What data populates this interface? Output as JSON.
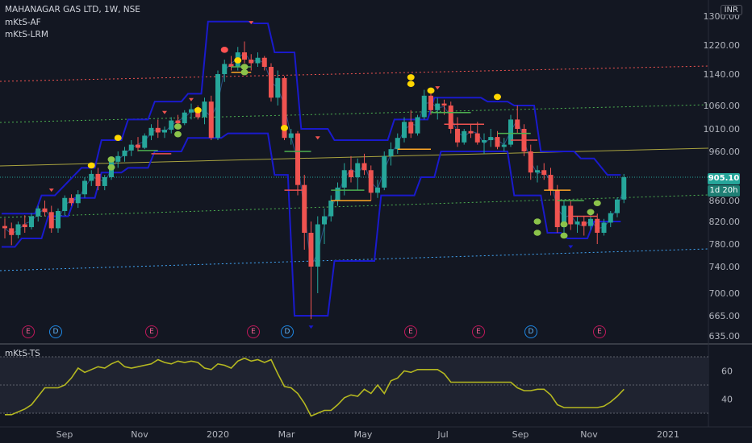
{
  "header": {
    "title": "MAHANAGAR GAS LTD, 1W, NSE",
    "indicators": [
      "mKtS-AF",
      "mKtS-LRM"
    ],
    "sub_indicator": "mKtS-TS",
    "currency": "INR"
  },
  "price_axis": {
    "labels": [
      "1300.00",
      "1220.00",
      "1140.00",
      "1060.00",
      "1010.00",
      "960.00",
      "860.00",
      "820.00",
      "780.00",
      "740.00",
      "700.00",
      "665.00",
      "635.00"
    ]
  },
  "last_price": {
    "value": "905.10",
    "countdown": "1d 20h"
  },
  "osc_axis": {
    "labels": [
      "60",
      "40"
    ]
  },
  "time_axis": {
    "labels": [
      "Sep",
      "Nov",
      "2020",
      "Mar",
      "May",
      "Jul",
      "Sep",
      "Nov",
      "2021"
    ]
  },
  "events": [
    {
      "type": "E"
    },
    {
      "type": "D"
    },
    {
      "type": "E"
    },
    {
      "type": "E"
    },
    {
      "type": "D"
    },
    {
      "type": "E"
    },
    {
      "type": "E"
    },
    {
      "type": "D"
    },
    {
      "type": "E"
    }
  ],
  "colors": {
    "up": "#26a69a",
    "down": "#ef5350",
    "channel": "#1a1acc",
    "reg_upper": "#ef5350",
    "reg_mid": "#4caf50",
    "reg_lower": "#42a5f5",
    "osc_line": "#b5b820",
    "background": "#131722"
  },
  "chart_data": [
    {
      "type": "candlestick",
      "title": "MAHANAGAR GAS LTD, 1W, NSE",
      "ylim": [
        635,
        1310
      ],
      "series": [
        {
          "name": "MAHANAGAR GAS LTD",
          "ohlc": [
            [
              812,
              826,
              790,
              808
            ],
            [
              808,
              818,
              778,
              796
            ],
            [
              796,
              820,
              790,
              815
            ],
            [
              815,
              832,
              800,
              810
            ],
            [
              810,
              836,
              806,
              830
            ],
            [
              830,
              850,
              820,
              845
            ],
            [
              845,
              860,
              830,
              838
            ],
            [
              838,
              850,
              800,
              808
            ],
            [
              808,
              845,
              800,
              840
            ],
            [
              840,
              870,
              832,
              865
            ],
            [
              865,
              872,
              850,
              855
            ],
            [
              855,
              880,
              846,
              872
            ],
            [
              872,
              905,
              865,
              898
            ],
            [
              898,
              920,
              888,
              912
            ],
            [
              912,
              925,
              880,
              888
            ],
            [
              888,
              910,
              880,
              905
            ],
            [
              905,
              945,
              900,
              938
            ],
            [
              938,
              960,
              925,
              950
            ],
            [
              950,
              970,
              938,
              962
            ],
            [
              962,
              985,
              950,
              975
            ],
            [
              975,
              992,
              960,
              968
            ],
            [
              968,
              1000,
              965,
              995
            ],
            [
              995,
              1020,
              985,
              1012
            ],
            [
              1012,
              1030,
              990,
              1002
            ],
            [
              1002,
              1015,
              990,
              1008
            ],
            [
              1008,
              1035,
              1000,
              1028
            ],
            [
              1028,
              1040,
              1015,
              1022
            ],
            [
              1022,
              1050,
              1018,
              1045
            ],
            [
              1045,
              1065,
              1030,
              1052
            ],
            [
              1052,
              1060,
              1030,
              1035
            ],
            [
              1035,
              1080,
              1020,
              1070
            ],
            [
              1070,
              1085,
              985,
              990
            ],
            [
              990,
              1150,
              985,
              1140
            ],
            [
              1140,
              1180,
              1120,
              1168
            ],
            [
              1168,
              1190,
              1150,
              1160
            ],
            [
              1160,
              1215,
              1150,
              1200
            ],
            [
              1200,
              1230,
              1170,
              1180
            ],
            [
              1180,
              1195,
              1150,
              1170
            ],
            [
              1170,
              1200,
              1160,
              1185
            ],
            [
              1185,
              1190,
              1150,
              1160
            ],
            [
              1160,
              1170,
              1070,
              1080
            ],
            [
              1080,
              1150,
              1060,
              1130
            ],
            [
              1130,
              1135,
              985,
              990
            ],
            [
              990,
              1010,
              975,
              1000
            ],
            [
              1000,
              1005,
              870,
              890
            ],
            [
              890,
              910,
              770,
              800
            ],
            [
              800,
              820,
              660,
              740
            ],
            [
              740,
              830,
              700,
              815
            ],
            [
              815,
              845,
              780,
              830
            ],
            [
              830,
              870,
              820,
              860
            ],
            [
              860,
              895,
              850,
              885
            ],
            [
              885,
              935,
              870,
              920
            ],
            [
              920,
              950,
              895,
              905
            ],
            [
              905,
              945,
              880,
              935
            ],
            [
              935,
              955,
              910,
              920
            ],
            [
              920,
              930,
              860,
              875
            ],
            [
              875,
              900,
              865,
              885
            ],
            [
              885,
              960,
              880,
              950
            ],
            [
              950,
              980,
              930,
              965
            ],
            [
              965,
              1000,
              955,
              990
            ],
            [
              990,
              1035,
              980,
              1025
            ],
            [
              1025,
              1050,
              990,
              1000
            ],
            [
              1000,
              1040,
              995,
              1035
            ],
            [
              1035,
              1100,
              1030,
              1085
            ],
            [
              1085,
              1095,
              1040,
              1050
            ],
            [
              1050,
              1080,
              1030,
              1065
            ],
            [
              1065,
              1075,
              1040,
              1060
            ],
            [
              1060,
              1070,
              1000,
              1010
            ],
            [
              1010,
              1035,
              970,
              980
            ],
            [
              980,
              1010,
              975,
              1005
            ],
            [
              1005,
              1020,
              990,
              1000
            ],
            [
              1000,
              1025,
              975,
              980
            ],
            [
              980,
              1000,
              955,
              985
            ],
            [
              985,
              1010,
              970,
              992
            ],
            [
              992,
              1005,
              965,
              970
            ],
            [
              970,
              990,
              960,
              975
            ],
            [
              975,
              1040,
              970,
              1030
            ],
            [
              1030,
              1060,
              1000,
              1010
            ],
            [
              1010,
              1020,
              950,
              960
            ],
            [
              960,
              975,
              900,
              915
            ],
            [
              915,
              930,
              895,
              920
            ],
            [
              920,
              935,
              900,
              910
            ],
            [
              910,
              925,
              870,
              880
            ],
            [
              880,
              890,
              800,
              810
            ],
            [
              810,
              860,
              795,
              850
            ],
            [
              850,
              860,
              805,
              815
            ],
            [
              815,
              830,
              800,
              820
            ],
            [
              820,
              830,
              795,
              812
            ],
            [
              812,
              840,
              805,
              825
            ],
            [
              825,
              835,
              780,
              800
            ],
            [
              800,
              825,
              795,
              818
            ],
            [
              818,
              840,
              810,
              836
            ],
            [
              836,
              866,
              828,
              862
            ],
            [
              862,
              912,
              855,
              905
            ]
          ]
        }
      ]
    },
    {
      "type": "line",
      "title": "mKtS-TS",
      "ylim": [
        25,
        70
      ],
      "series": [
        {
          "name": "mKtS-TS",
          "values": [
            29,
            29,
            31,
            33,
            36,
            42,
            48,
            48,
            48,
            50,
            55,
            62,
            59,
            61,
            63,
            62,
            65,
            67,
            63,
            62,
            63,
            64,
            65,
            68,
            66,
            65,
            67,
            66,
            67,
            66,
            62,
            61,
            65,
            64,
            62,
            67,
            69,
            67,
            68,
            66,
            68,
            58,
            49,
            48,
            44,
            37,
            28,
            30,
            32,
            32,
            36,
            41,
            43,
            42,
            47,
            44,
            50,
            44,
            53,
            55,
            60,
            59,
            61,
            61,
            61,
            61,
            58,
            52,
            52,
            52,
            52,
            52,
            52,
            52,
            52,
            52,
            52,
            48,
            46,
            46,
            47,
            47,
            43,
            36,
            34,
            34,
            34,
            34,
            34,
            34,
            35,
            38,
            42,
            47
          ]
        }
      ]
    }
  ]
}
